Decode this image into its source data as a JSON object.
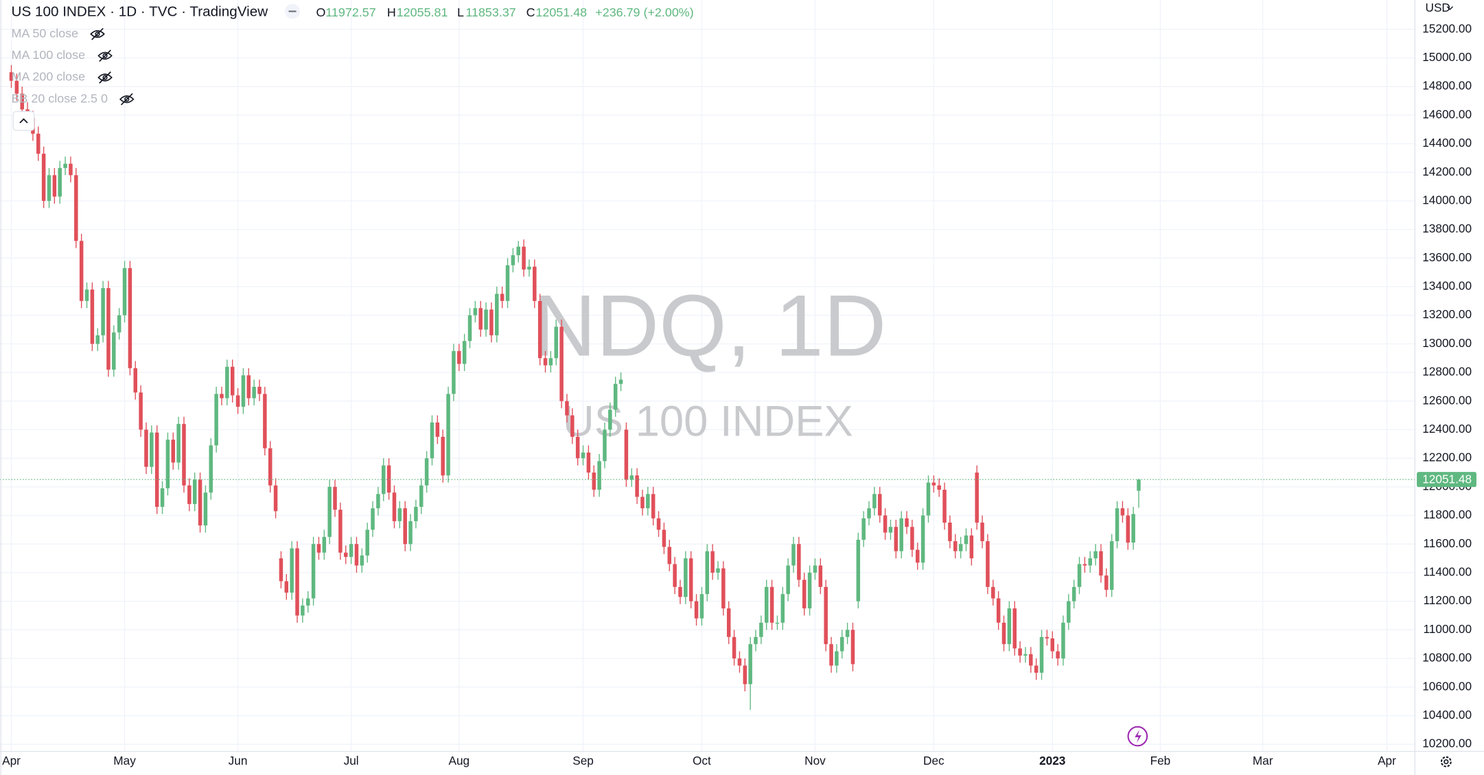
{
  "header": {
    "title": "US 100 INDEX · 1D · TVC · TradingView",
    "ohlc_labels": [
      "O",
      "H",
      "L",
      "C"
    ],
    "change": "+236.79 (+2.00%)"
  },
  "indicators": [
    "MA 50 close",
    "MA 100 close",
    "MA 200 close",
    "BB 20 close 2.5 0"
  ],
  "watermark": {
    "symbol": "NDQ, 1D",
    "description": "US 100 INDEX"
  },
  "currency": "USD",
  "chart_data": {
    "type": "candlestick",
    "up_color": "#5fb880",
    "down_color": "#e0505a",
    "grid": true,
    "xlim": [
      -2.1,
      260.2
    ],
    "ylim": [
      10150,
      15405
    ],
    "yticks": [
      {
        "value": 10200,
        "label": "10200.00"
      },
      {
        "value": 10400,
        "label": "10400.00"
      },
      {
        "value": 10600,
        "label": "10600.00"
      },
      {
        "value": 10800,
        "label": "10800.00"
      },
      {
        "value": 11000,
        "label": "11000.00"
      },
      {
        "value": 11200,
        "label": "11200.00"
      },
      {
        "value": 11400,
        "label": "11400.00"
      },
      {
        "value": 11600,
        "label": "11600.00"
      },
      {
        "value": 11800,
        "label": "11800.00"
      },
      {
        "value": 12000,
        "label": "12000.00"
      },
      {
        "value": 12200,
        "label": "12200.00"
      },
      {
        "value": 12400,
        "label": "12400.00"
      },
      {
        "value": 12600,
        "label": "12600.00"
      },
      {
        "value": 12800,
        "label": "12800.00"
      },
      {
        "value": 13000,
        "label": "13000.00"
      },
      {
        "value": 13200,
        "label": "13200.00"
      },
      {
        "value": 13400,
        "label": "13400.00"
      },
      {
        "value": 13600,
        "label": "13600.00"
      },
      {
        "value": 13800,
        "label": "13800.00"
      },
      {
        "value": 14000,
        "label": "14000.00"
      },
      {
        "value": 14200,
        "label": "14200.00"
      },
      {
        "value": 14400,
        "label": "14400.00"
      },
      {
        "value": 14600,
        "label": "14600.00"
      },
      {
        "value": 14800,
        "label": "14800.00"
      },
      {
        "value": 15000,
        "label": "15000.00"
      },
      {
        "value": 15200,
        "label": "15200.00"
      }
    ],
    "xticks": [
      {
        "value": 0,
        "label": "Apr"
      },
      {
        "value": 21,
        "label": "May"
      },
      {
        "value": 42,
        "label": "Jun"
      },
      {
        "value": 63,
        "label": "Jul"
      },
      {
        "value": 83,
        "label": "Aug"
      },
      {
        "value": 106,
        "label": "Sep"
      },
      {
        "value": 128,
        "label": "Oct"
      },
      {
        "value": 149,
        "label": "Nov"
      },
      {
        "value": 171,
        "label": "Dec"
      },
      {
        "value": 193,
        "label": "2023"
      },
      {
        "value": 213,
        "label": "Feb"
      },
      {
        "value": 232,
        "label": "Mar"
      },
      {
        "value": 255,
        "label": "Apr"
      }
    ],
    "open": [
      14900,
      14840,
      14750,
      14640,
      14580,
      14470,
      14330,
      14000,
      14180,
      14030,
      14230,
      14260,
      14180,
      13720,
      13300,
      13380,
      13000,
      13060,
      13390,
      12820,
      13080,
      13200,
      13530,
      12830,
      12660,
      12400,
      12140,
      12380,
      11860,
      11990,
      12330,
      12170,
      12440,
      12010,
      11880,
      12050,
      11730,
      11960,
      12290,
      12650,
      12620,
      12840,
      12640,
      12560,
      12780,
      12620,
      12700,
      12650,
      12270,
      12010,
      11500,
      11340,
      11260,
      11570,
      11100,
      11170,
      11220,
      11600,
      11540,
      11650,
      12000,
      11840,
      11540,
      11510,
      11600,
      11450,
      11520,
      11700,
      11850,
      11950,
      12150,
      11960,
      11760,
      11850,
      11600,
      11760,
      11860,
      12010,
      12200,
      12450,
      12350,
      12080,
      12650,
      12950,
      12860,
      13020,
      13200,
      13250,
      13100,
      13240,
      13060,
      13350,
      13300,
      13550,
      13620,
      13680,
      13520,
      13540,
      13300,
      12900,
      12850,
      12900,
      13120,
      12600,
      12500,
      12350,
      12200,
      12240,
      12100,
      11980,
      12180,
      12400,
      12540,
      12720,
      12400,
      12050,
      12080,
      11930,
      11850,
      11950,
      11780,
      11700,
      11580,
      11460,
      11300,
      11230,
      11500,
      11200,
      11080,
      11250,
      11550,
      11400,
      11430,
      11150,
      10950,
      10800,
      10750,
      10620,
      10900,
      10950,
      11050,
      11300,
      11050,
      11050,
      11250,
      11450,
      11600,
      11350,
      11150,
      11400,
      11450,
      11300,
      10900,
      10750,
      10850,
      10950,
      11000,
      11200,
      11630,
      11780,
      11850,
      11950,
      11800,
      11680,
      11720,
      11550,
      11780,
      11720,
      11560,
      11470,
      11800,
      12030,
      12010,
      11980,
      11750,
      11620,
      11550,
      11600,
      11660,
      12100,
      11750,
      11620,
      11300,
      11220,
      11050,
      10900,
      11150,
      10870,
      10820,
      10830,
      10750,
      10700,
      10950,
      10940,
      10850,
      10800,
      11050,
      11200,
      11300,
      11460,
      11450,
      11500,
      11550,
      11380,
      11280,
      11620,
      11850,
      11800,
      11610,
      11972.57
    ],
    "high": [
      14950,
      14890,
      14800,
      14690,
      14630,
      14520,
      14380,
      14230,
      14230,
      14280,
      14310,
      14310,
      14230,
      13770,
      13430,
      13430,
      13110,
      13440,
      13440,
      13130,
      13250,
      13580,
      13580,
      12880,
      12710,
      12450,
      12430,
      12430,
      12040,
      12380,
      12380,
      12490,
      12490,
      12060,
      12100,
      12100,
      12010,
      12340,
      12700,
      12700,
      12890,
      12890,
      12690,
      12830,
      12830,
      12750,
      12750,
      12700,
      12320,
      12060,
      11550,
      11390,
      11620,
      11620,
      11220,
      11270,
      11650,
      11650,
      11700,
      12050,
      12050,
      11890,
      11590,
      11650,
      11650,
      11570,
      11750,
      11900,
      12000,
      12200,
      12200,
      12010,
      11900,
      11900,
      11810,
      11910,
      12060,
      12250,
      12500,
      12500,
      12400,
      12700,
      13000,
      13000,
      13070,
      13250,
      13300,
      13300,
      13290,
      13290,
      13400,
      13400,
      13600,
      13670,
      13720,
      13730,
      13590,
      13590,
      13350,
      12950,
      12950,
      13170,
      13170,
      12650,
      12550,
      12400,
      12290,
      12290,
      12150,
      12230,
      12450,
      12590,
      12770,
      12800,
      12450,
      12130,
      12130,
      11980,
      12000,
      12000,
      11830,
      11750,
      11630,
      11510,
      11350,
      11550,
      11550,
      11250,
      11300,
      11600,
      11600,
      11480,
      11480,
      11200,
      11000,
      10850,
      10800,
      10950,
      11000,
      11100,
      11350,
      11350,
      11100,
      11300,
      11500,
      11650,
      11650,
      11400,
      11450,
      11500,
      11500,
      11350,
      10950,
      10900,
      11000,
      11050,
      11050,
      11680,
      11830,
      11900,
      12000,
      12000,
      11850,
      11770,
      11770,
      11830,
      11830,
      11770,
      11610,
      11850,
      12080,
      12080,
      12060,
      12030,
      11800,
      11670,
      11650,
      11710,
      11710,
      12150,
      11800,
      11670,
      11350,
      11270,
      11100,
      11200,
      11200,
      10920,
      10880,
      10880,
      10800,
      11000,
      11000,
      10990,
      10900,
      11100,
      11250,
      11350,
      11510,
      11510,
      11550,
      11600,
      11600,
      11430,
      11670,
      11900,
      11900,
      11850,
      11860,
      12055.81
    ],
    "low": [
      14790,
      14700,
      14590,
      14530,
      14420,
      14280,
      13950,
      13950,
      13980,
      13980,
      14180,
      14130,
      13670,
      13250,
      13250,
      12950,
      12950,
      13010,
      12770,
      12770,
      13030,
      13150,
      12780,
      12610,
      12350,
      12090,
      12090,
      11810,
      11810,
      11940,
      12120,
      12120,
      11960,
      11830,
      11830,
      11680,
      11680,
      11910,
      12240,
      12570,
      12570,
      12590,
      12510,
      12510,
      12570,
      12570,
      12600,
      12220,
      11960,
      11780,
      11290,
      11210,
      11210,
      11050,
      11050,
      11120,
      11170,
      11490,
      11490,
      11600,
      11790,
      11490,
      11460,
      11460,
      11400,
      11400,
      11470,
      11650,
      11800,
      11900,
      11910,
      11710,
      11710,
      11550,
      11550,
      11710,
      11810,
      11960,
      12150,
      12300,
      12030,
      12030,
      12600,
      12810,
      12810,
      12970,
      13150,
      13050,
      13050,
      13010,
      13010,
      13250,
      13250,
      13500,
      13570,
      13470,
      13470,
      13250,
      12850,
      12800,
      12800,
      12850,
      12550,
      12450,
      12300,
      12150,
      12150,
      12050,
      11930,
      11930,
      12130,
      12350,
      12490,
      12670,
      12000,
      12000,
      11880,
      11800,
      11800,
      11730,
      11650,
      11530,
      11410,
      11250,
      11180,
      11180,
      11150,
      11030,
      11030,
      11200,
      11350,
      11350,
      11100,
      10900,
      10750,
      10700,
      10570,
      10440,
      10850,
      10900,
      11000,
      11000,
      11000,
      11000,
      11200,
      11400,
      11300,
      11100,
      11100,
      11350,
      11250,
      10850,
      10700,
      10700,
      10800,
      10900,
      10710,
      11150,
      11580,
      11730,
      11800,
      11750,
      11630,
      11630,
      11500,
      11500,
      11670,
      11510,
      11420,
      11420,
      11750,
      11960,
      11930,
      11700,
      11570,
      11500,
      11500,
      11550,
      11450,
      11700,
      11570,
      11250,
      11170,
      11000,
      10850,
      10850,
      10820,
      10770,
      10770,
      10700,
      10650,
      10650,
      10890,
      10800,
      10750,
      10750,
      11000,
      11150,
      11250,
      11400,
      11400,
      11450,
      11330,
      11230,
      11230,
      11570,
      11750,
      11560,
      11560,
      11853.37
    ],
    "close": [
      14840,
      14750,
      14640,
      14580,
      14470,
      14330,
      14000,
      14180,
      14030,
      14230,
      14260,
      14180,
      13720,
      13300,
      13380,
      13000,
      13060,
      13390,
      12820,
      13080,
      13200,
      13530,
      12830,
      12660,
      12400,
      12140,
      12380,
      11860,
      11990,
      12330,
      12170,
      12440,
      12010,
      11880,
      12050,
      11730,
      11960,
      12290,
      12650,
      12620,
      12840,
      12640,
      12560,
      12780,
      12620,
      12700,
      12650,
      12270,
      12010,
      11830,
      11340,
      11260,
      11570,
      11100,
      11170,
      11220,
      11600,
      11540,
      11650,
      12000,
      11840,
      11540,
      11510,
      11600,
      11450,
      11520,
      11700,
      11850,
      11950,
      12150,
      11960,
      11760,
      11850,
      11600,
      11760,
      11860,
      12010,
      12200,
      12450,
      12350,
      12080,
      12650,
      12950,
      12860,
      13020,
      13200,
      13250,
      13100,
      13240,
      13060,
      13350,
      13300,
      13550,
      13620,
      13680,
      13520,
      13540,
      13300,
      12900,
      12850,
      12900,
      13120,
      12600,
      12500,
      12350,
      12200,
      12240,
      12100,
      11980,
      12180,
      12400,
      12540,
      12720,
      12750,
      12050,
      12080,
      11930,
      11850,
      11950,
      11780,
      11700,
      11580,
      11460,
      11300,
      11230,
      11500,
      11200,
      11080,
      11250,
      11550,
      11400,
      11430,
      11150,
      10950,
      10800,
      10750,
      10620,
      10900,
      10950,
      11050,
      11300,
      11050,
      11050,
      11250,
      11450,
      11600,
      11350,
      11150,
      11400,
      11450,
      11300,
      10900,
      10750,
      10850,
      10950,
      11000,
      10760,
      11630,
      11780,
      11850,
      11950,
      11800,
      11680,
      11720,
      11550,
      11780,
      11720,
      11560,
      11470,
      11800,
      12030,
      12010,
      11980,
      11750,
      11620,
      11550,
      11600,
      11660,
      11500,
      11750,
      11620,
      11300,
      11220,
      11050,
      10900,
      11150,
      10870,
      10820,
      10830,
      10750,
      10700,
      10950,
      10940,
      10850,
      10800,
      11050,
      11200,
      11300,
      11460,
      11450,
      11500,
      11550,
      11380,
      11280,
      11620,
      11850,
      11800,
      11610,
      11810,
      12051.48
    ]
  }
}
